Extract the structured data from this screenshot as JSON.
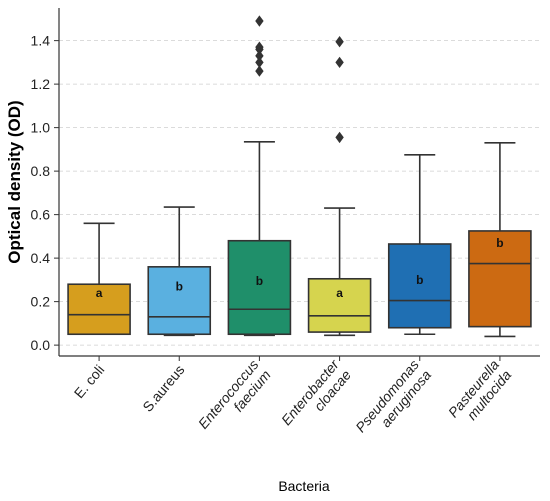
{
  "chart_data": {
    "type": "box",
    "xlabel": "Bacteria",
    "ylabel": "Optical density (OD)",
    "ylim": [
      -0.05,
      1.55
    ],
    "yticks": [
      0.0,
      0.2,
      0.4,
      0.6,
      0.8,
      1.0,
      1.2,
      1.4
    ],
    "ytick_labels": [
      "0.0",
      "0.2",
      "0.4",
      "0.6",
      "0.8",
      "1.0",
      "1.2",
      "1.4"
    ],
    "grid": "horizontal dashed",
    "categories": [
      {
        "lines": [
          "E. coli"
        ]
      },
      {
        "lines": [
          "S.aureus"
        ]
      },
      {
        "lines": [
          "Enterococcus",
          "faecium"
        ]
      },
      {
        "lines": [
          "Enterobacter",
          "cloacae"
        ]
      },
      {
        "lines": [
          "Pseudomonas",
          "aeruginosa"
        ]
      },
      {
        "lines": [
          "Pasteurella",
          "multocida"
        ]
      }
    ],
    "boxes": [
      {
        "whisker_low": 0.05,
        "q1": 0.05,
        "median": 0.14,
        "q3": 0.28,
        "whisker_high": 0.56,
        "outliers": [],
        "group_label": "a",
        "label_y": 0.24,
        "color": "#d69e1e"
      },
      {
        "whisker_low": 0.045,
        "q1": 0.05,
        "median": 0.13,
        "q3": 0.36,
        "whisker_high": 0.635,
        "outliers": [],
        "group_label": "b",
        "label_y": 0.27,
        "color": "#5ab0e0"
      },
      {
        "whisker_low": 0.045,
        "q1": 0.05,
        "median": 0.165,
        "q3": 0.48,
        "whisker_high": 0.935,
        "outliers": [
          1.26,
          1.3,
          1.33,
          1.36,
          1.37,
          1.49
        ],
        "group_label": "b",
        "label_y": 0.295,
        "color": "#1f8f6a"
      },
      {
        "whisker_low": 0.045,
        "q1": 0.06,
        "median": 0.135,
        "q3": 0.305,
        "whisker_high": 0.63,
        "outliers": [
          0.955,
          1.3,
          1.395
        ],
        "group_label": "a",
        "label_y": 0.24,
        "color": "#d6d44e"
      },
      {
        "whisker_low": 0.05,
        "q1": 0.08,
        "median": 0.205,
        "q3": 0.465,
        "whisker_high": 0.875,
        "outliers": [],
        "group_label": "b",
        "label_y": 0.3,
        "color": "#1f6fb3"
      },
      {
        "whisker_low": 0.04,
        "q1": 0.085,
        "median": 0.375,
        "q3": 0.525,
        "whisker_high": 0.93,
        "outliers": [],
        "group_label": "b",
        "label_y": 0.47,
        "color": "#cc6a12"
      }
    ]
  }
}
